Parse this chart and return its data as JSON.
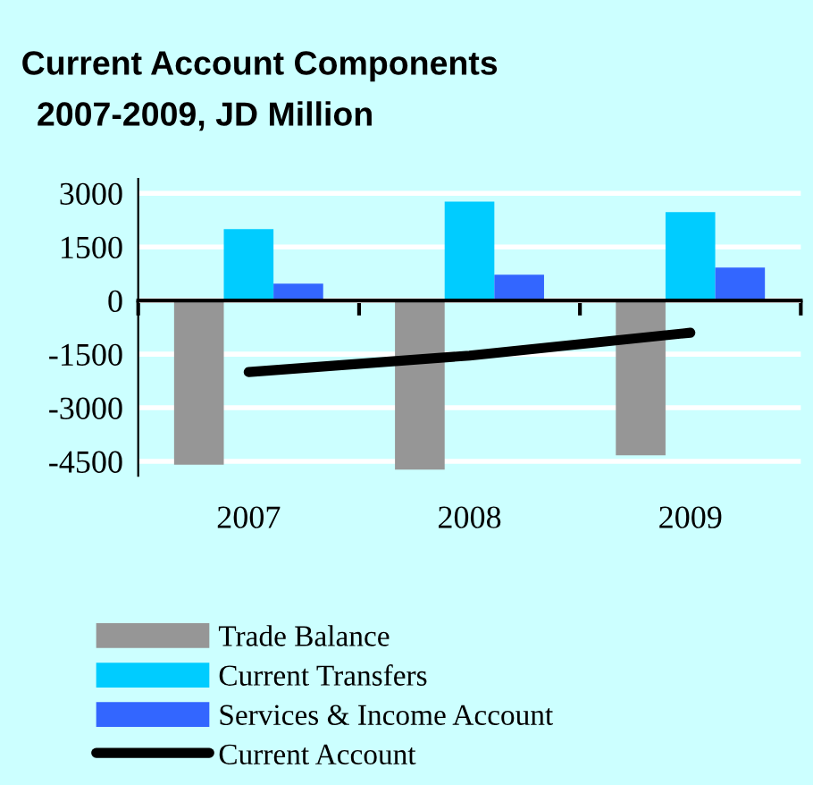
{
  "chart_data": {
    "type": "bar",
    "title": "Current Account Components",
    "subtitle": "2007-2009, JD Million",
    "categories": [
      "2007",
      "2008",
      "2009"
    ],
    "series": [
      {
        "name": "Trade Balance",
        "color": "#969696",
        "values": [
          -4590,
          -4730,
          -4330
        ]
      },
      {
        "name": "Current Transfers",
        "color": "#00ccff",
        "values": [
          2000,
          2770,
          2470
        ]
      },
      {
        "name": "Services & Income Account",
        "color": "#3366ff",
        "values": [
          470,
          720,
          920
        ]
      },
      {
        "name": "Current Account",
        "type": "line",
        "color": "#000000",
        "values": [
          -2000,
          -1540,
          -900
        ]
      }
    ],
    "ylim": [
      -4900,
      3400
    ],
    "yticks": [
      -4500,
      -3000,
      -1500,
      0,
      1500,
      3000
    ],
    "grid": "y",
    "legend": "bottom",
    "marker": "none",
    "line_style": "solid"
  }
}
